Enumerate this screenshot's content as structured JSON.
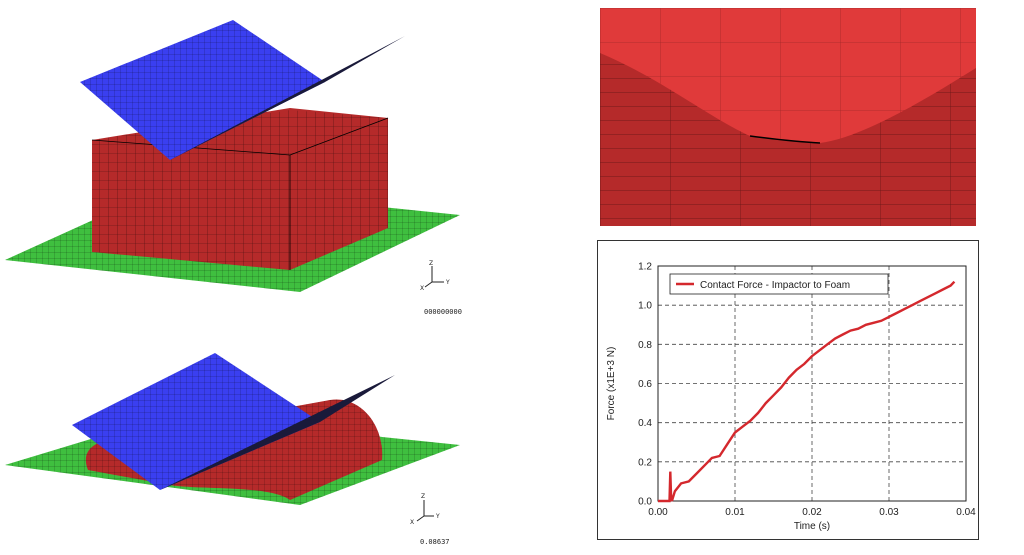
{
  "colors": {
    "plate": "#3a3ff0",
    "foam": "#b52a2a",
    "ground": "#3fbf3f",
    "zoom_red": "#e03a3a",
    "series": "#d4282d"
  },
  "views": {
    "top_timestamp": "000000000",
    "bottom_timestamp": "0.08637",
    "triad": {
      "z": "Z",
      "x": "X",
      "y": "Y"
    }
  },
  "chart_data": {
    "type": "line",
    "xlabel": "Time (s)",
    "ylabel": "Force (x1E+3 N)",
    "xlim": [
      0,
      0.04
    ],
    "ylim": [
      0,
      1.2
    ],
    "x_ticks": [
      "0.00",
      "0.01",
      "0.02",
      "0.03",
      "0.04"
    ],
    "y_ticks": [
      "0.0",
      "0.2",
      "0.4",
      "0.6",
      "0.8",
      "1.0",
      "1.2"
    ],
    "grid": true,
    "legend_position": "top",
    "series": [
      {
        "name": "Contact Force - Impactor to Foam",
        "x": [
          0,
          0.0015,
          0.0016,
          0.0017,
          0.0018,
          0.0022,
          0.003,
          0.004,
          0.005,
          0.006,
          0.007,
          0.008,
          0.009,
          0.01,
          0.011,
          0.012,
          0.013,
          0.014,
          0.015,
          0.016,
          0.017,
          0.018,
          0.019,
          0.02,
          0.021,
          0.022,
          0.023,
          0.024,
          0.025,
          0.026,
          0.027,
          0.028,
          0.029,
          0.03,
          0.031,
          0.032,
          0.033,
          0.034,
          0.035,
          0.036,
          0.037,
          0.038,
          0.0385
        ],
        "y": [
          0,
          0,
          0.15,
          0.02,
          0.0,
          0.05,
          0.09,
          0.1,
          0.14,
          0.18,
          0.22,
          0.23,
          0.29,
          0.35,
          0.38,
          0.41,
          0.45,
          0.5,
          0.54,
          0.58,
          0.63,
          0.67,
          0.7,
          0.74,
          0.77,
          0.8,
          0.83,
          0.85,
          0.87,
          0.88,
          0.9,
          0.91,
          0.92,
          0.94,
          0.96,
          0.98,
          1.0,
          1.02,
          1.04,
          1.06,
          1.08,
          1.1,
          1.12
        ]
      }
    ]
  }
}
